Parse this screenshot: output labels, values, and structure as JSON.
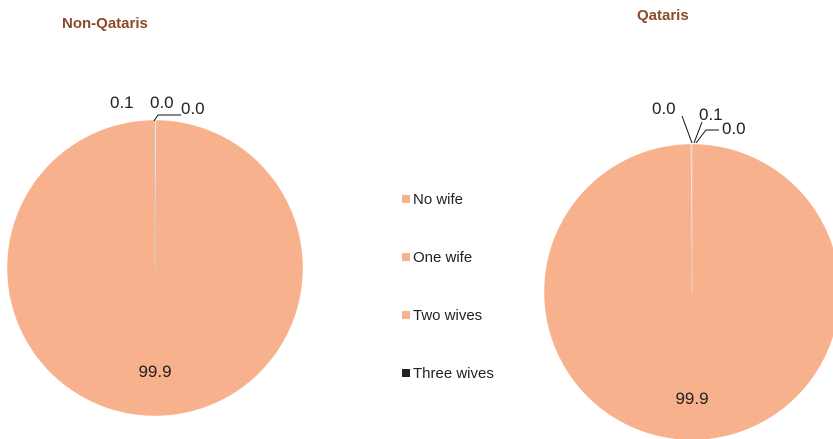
{
  "chart_data": [
    {
      "type": "pie",
      "title": "Non-Qataris",
      "slices": [
        {
          "label": "No wife",
          "value": 0.1,
          "color": "#f7b18d",
          "display": "0.1"
        },
        {
          "label": "One wife",
          "value": 99.9,
          "color": "#f7b18d",
          "display": "99.9"
        },
        {
          "label": "Two wives",
          "value": 0.0,
          "color": "#f7b18d",
          "display": "0.0"
        },
        {
          "label": "Three wives",
          "value": 0.0,
          "color": "#222222",
          "display": "0.0"
        }
      ]
    },
    {
      "type": "pie",
      "title": "Qataris",
      "slices": [
        {
          "label": "No wife",
          "value": 0.0,
          "color": "#f7b18d",
          "display": "0.0"
        },
        {
          "label": "One wife",
          "value": 99.9,
          "color": "#f7b18d",
          "display": "99.9"
        },
        {
          "label": "Two wives",
          "value": 0.1,
          "color": "#f7b18d",
          "display": "0.1"
        },
        {
          "label": "Three wives",
          "value": 0.0,
          "color": "#222222",
          "display": "0.0"
        }
      ]
    }
  ],
  "legend": {
    "placement": "center",
    "items": [
      {
        "label": "No wife",
        "color": "#f7b18d"
      },
      {
        "label": "One wife",
        "color": "#f7b18d"
      },
      {
        "label": "Two wives",
        "color": "#f7b18d"
      },
      {
        "label": "Three wives",
        "color": "#222222"
      }
    ]
  }
}
